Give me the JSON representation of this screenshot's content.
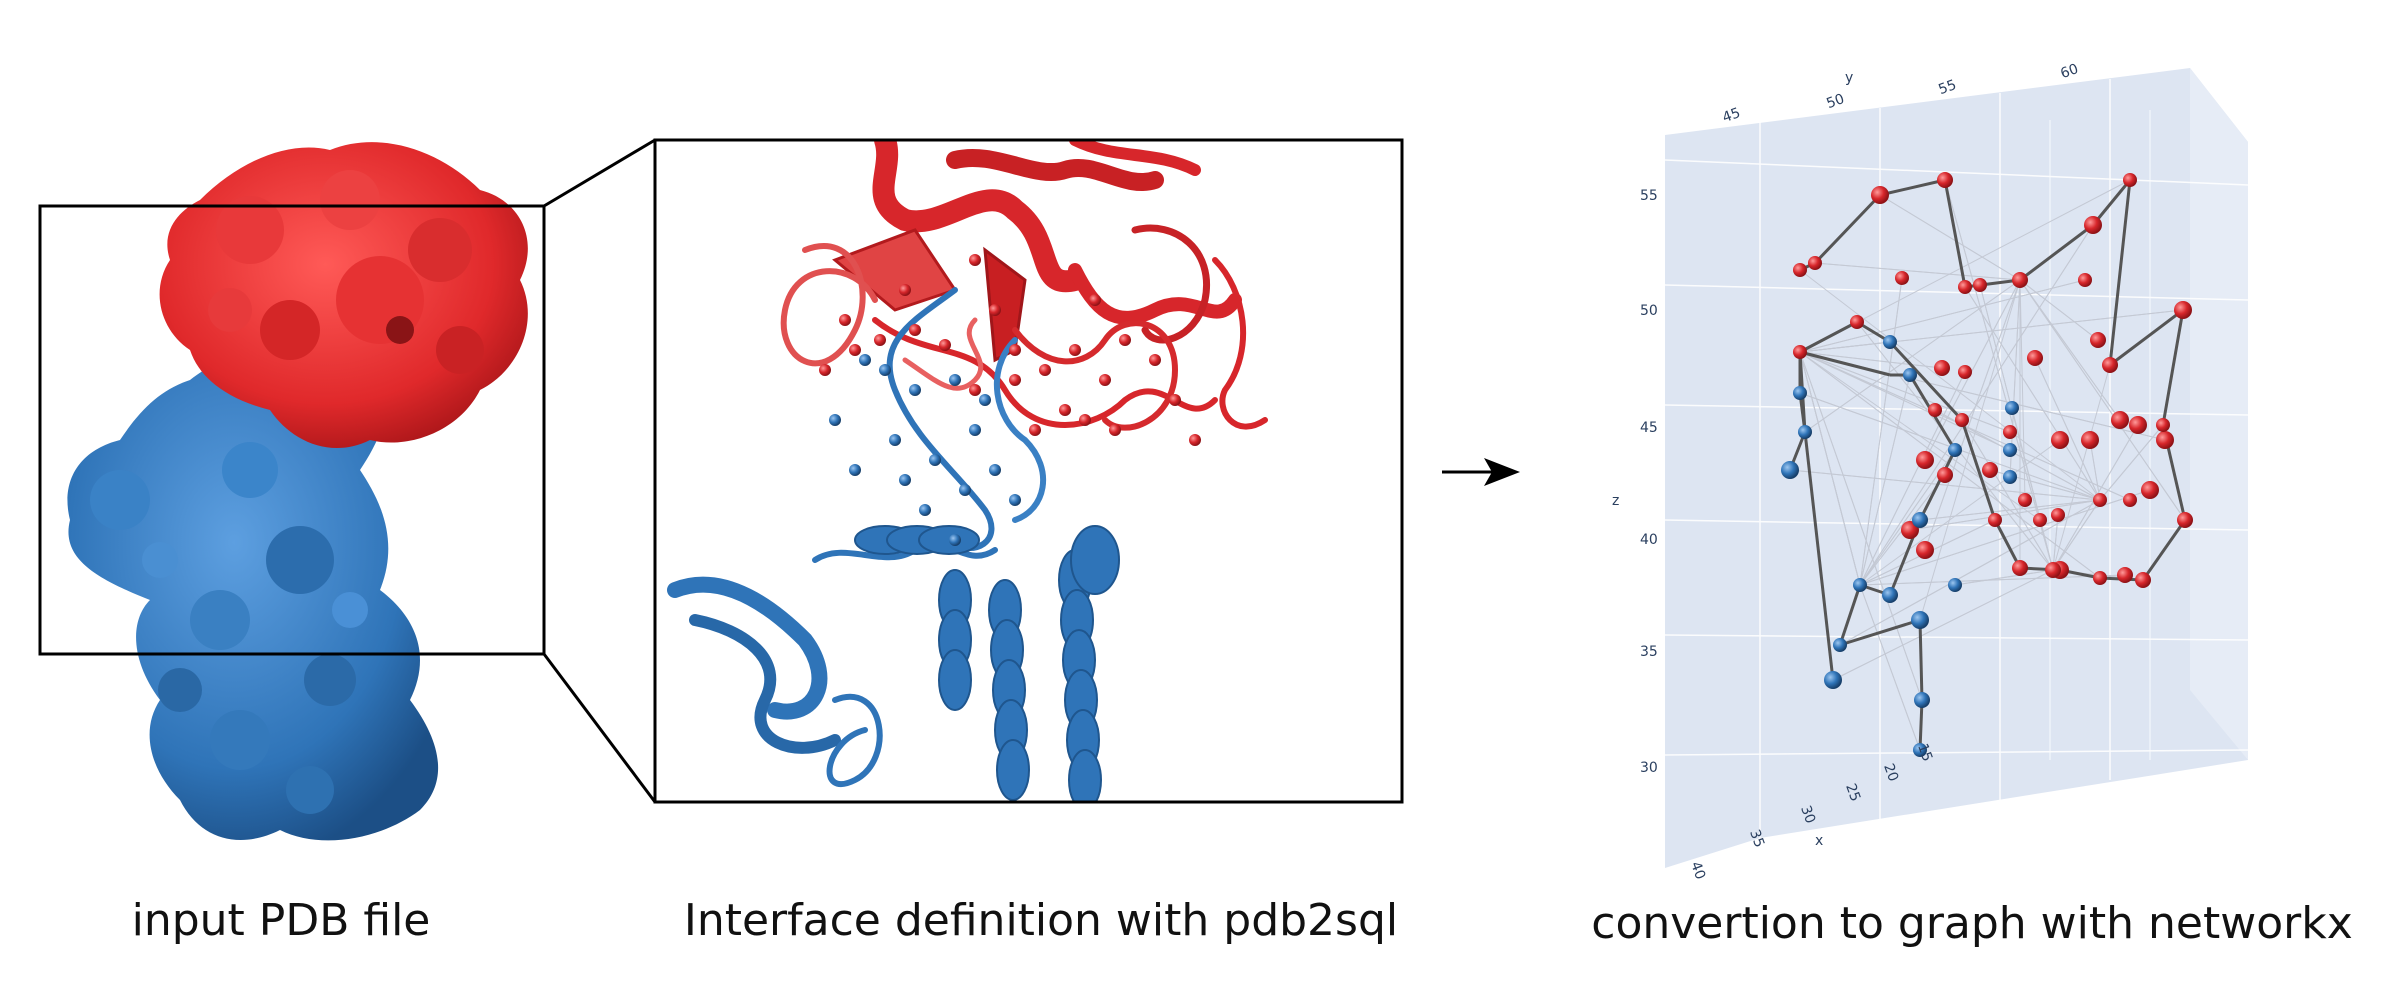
{
  "captions": {
    "input": "input PDB file",
    "interface": "Interface definition with pdb2sql",
    "graph": "convertion to graph with networkx"
  },
  "colors": {
    "chain_a": "#d7262b",
    "chain_b": "#2f74b8",
    "frame": "#000000",
    "graph_pane": "#dde5f2",
    "graph_edge": "#555555",
    "contact_edge": "#c4c9d4"
  },
  "icons": {
    "arrow": "right-arrow-icon"
  },
  "plot3d": {
    "axes": {
      "x": {
        "label": "x",
        "ticks": [
          "15",
          "20",
          "25",
          "30",
          "35",
          "40"
        ]
      },
      "y": {
        "label": "y",
        "ticks": [
          "45",
          "50",
          "55",
          "60"
        ]
      },
      "z": {
        "label": "z",
        "ticks": [
          "30",
          "35",
          "40",
          "45",
          "50",
          "55"
        ]
      }
    }
  }
}
